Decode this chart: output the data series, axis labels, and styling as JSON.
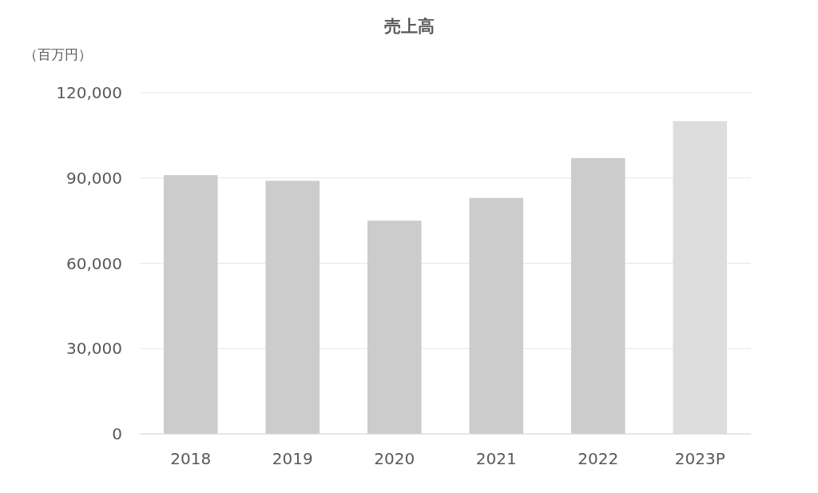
{
  "chart_data": {
    "type": "bar",
    "title": "売上高",
    "ylabel": "（百万円）",
    "categories": [
      "2018",
      "2019",
      "2020",
      "2021",
      "2022",
      "2023P"
    ],
    "values": [
      91000,
      89000,
      75000,
      83000,
      97000,
      110000
    ],
    "colors": [
      "#cccccc",
      "#cccccc",
      "#cccccc",
      "#cccccc",
      "#cccccc",
      "#dddddd"
    ],
    "ylim": [
      0,
      120000
    ],
    "yticks": [
      0,
      {
        "value": 30000,
        "label": "30,000"
      },
      {
        "value": 60000,
        "label": "60,000"
      },
      {
        "value": 90000,
        "label": "90,000"
      },
      {
        "value": 120000,
        "label": "120,000"
      }
    ],
    "grid": "y"
  }
}
